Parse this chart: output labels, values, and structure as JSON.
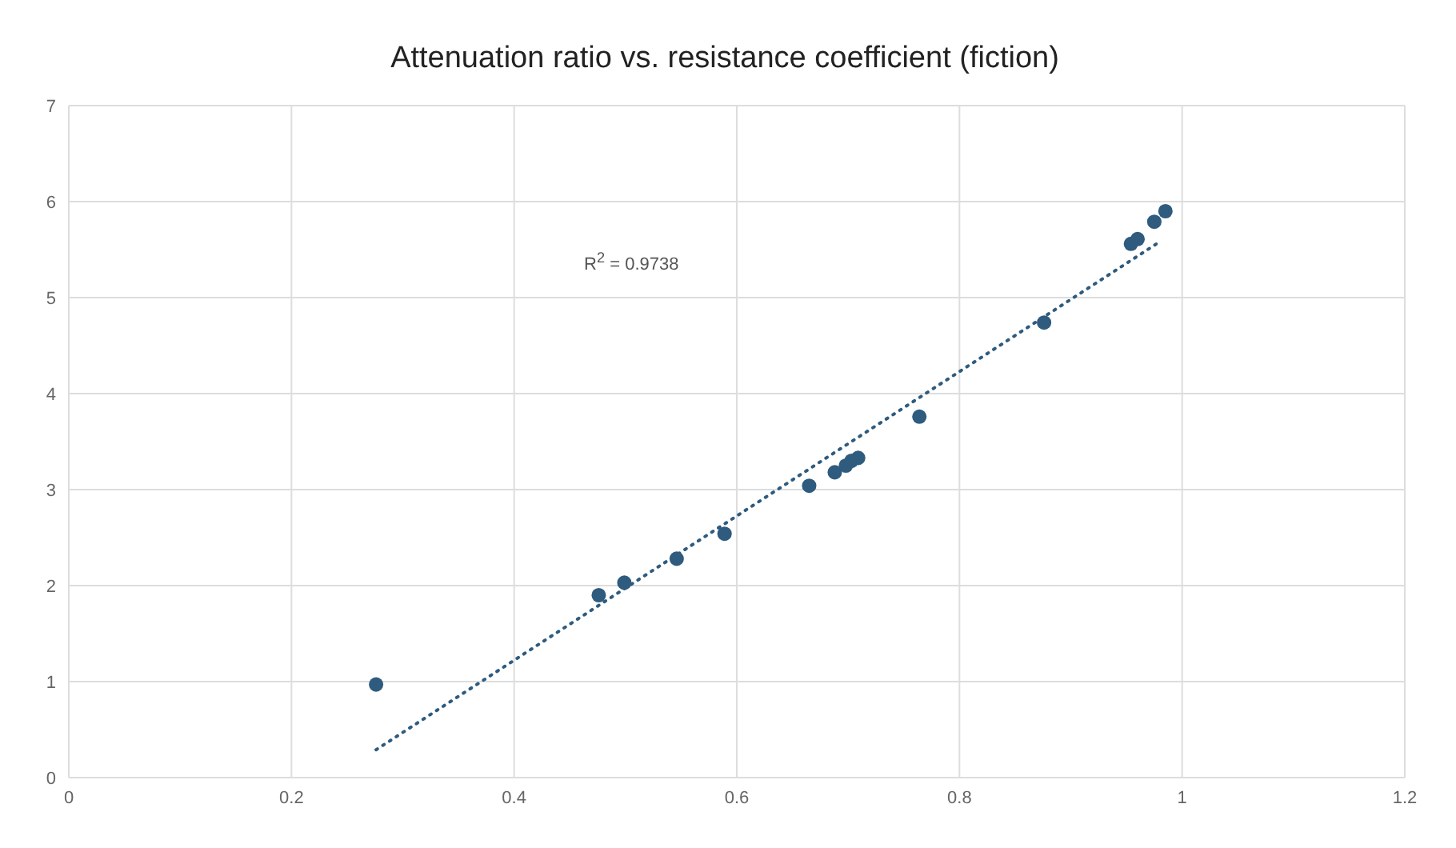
{
  "chart_data": {
    "type": "scatter",
    "title": "Attenuation ratio vs. resistance coefficient (fiction)",
    "annotations": [
      "R$^{2}$ = 0.9738"
    ],
    "xlim": [
      0,
      1.2
    ],
    "xticks": [
      0,
      0.2,
      0.4,
      0.6,
      0.8,
      1,
      1.2
    ],
    "ylim": [
      0,
      7
    ],
    "yticks": [
      0,
      1,
      2,
      3,
      4,
      5,
      6,
      7
    ],
    "grid": true,
    "marker": "circle",
    "series": [
      {
        "color": "#2e5b7e",
        "x": [
          0.276,
          0.476,
          0.499,
          0.546,
          0.589,
          0.665,
          0.688,
          0.698,
          0.703,
          0.709,
          0.764,
          0.876,
          0.954,
          0.96,
          0.975,
          0.985
        ],
        "values": [
          0.97,
          1.9,
          2.03,
          2.28,
          2.54,
          3.04,
          3.18,
          3.25,
          3.3,
          3.33,
          3.76,
          4.74,
          5.56,
          5.61,
          5.79,
          5.9
        ]
      },
      {
        "type": "line",
        "color": "#2e5b7e",
        "line_style": "dotted",
        "marker": "none",
        "x": [
          0.276,
          0.981
        ],
        "values": [
          0.29,
          5.59
        ]
      }
    ]
  }
}
